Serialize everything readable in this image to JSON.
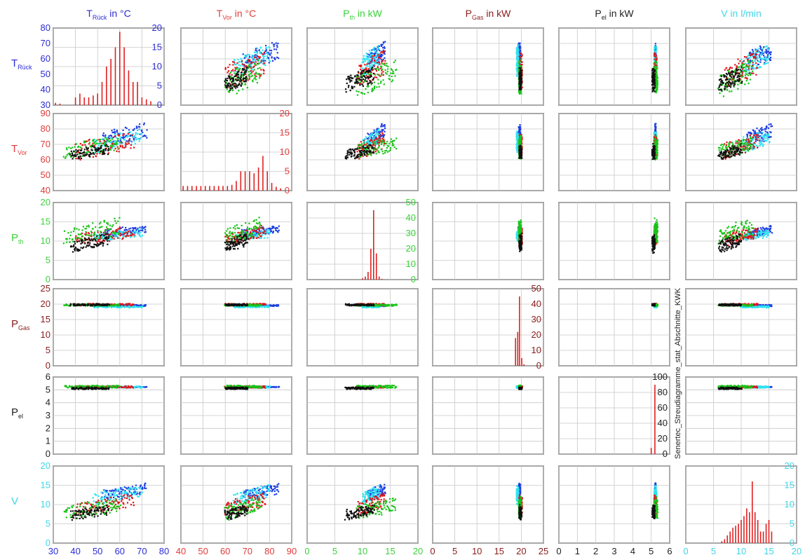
{
  "colors": {
    "T_rueck": "#2b2bd6",
    "T_vor": "#e23b3b",
    "P_th": "#3cd23c",
    "P_gas": "#8a1c1c",
    "P_el": "#222222",
    "V": "#3fd6e6",
    "series_blue": "#1d3fe0",
    "series_cyan": "#2fe3ef",
    "series_red": "#e0141a",
    "series_green": "#18c418",
    "series_black": "#111111",
    "hist": "#e02020"
  },
  "column_titles": [
    {
      "main": "T",
      "sub": "Rück",
      "tail": " in °C",
      "color": "#2b2bd6"
    },
    {
      "main": "T",
      "sub": "Vor",
      "tail": " in °C",
      "color": "#e23b3b"
    },
    {
      "main": "P",
      "sub": "th",
      "tail": " in kW",
      "color": "#3cd23c"
    },
    {
      "main": "P",
      "sub": "Gas",
      "tail": " in kW",
      "color": "#8a1c1c"
    },
    {
      "main": "P",
      "sub": "el",
      "tail": " in kW",
      "color": "#222222"
    },
    {
      "main": "V",
      "sub": "",
      "tail": " in l/min",
      "color": "#3fd6e6"
    }
  ],
  "row_labels": [
    {
      "main": "T",
      "sub": "Rück",
      "color": "#2b2bd6"
    },
    {
      "main": "T",
      "sub": "Vor",
      "color": "#e23b3b"
    },
    {
      "main": "P",
      "sub": "th",
      "color": "#3cd23c"
    },
    {
      "main": "P",
      "sub": "Gas",
      "color": "#8a1c1c"
    },
    {
      "main": "P",
      "sub": "el",
      "color": "#222222"
    },
    {
      "main": "V",
      "sub": "",
      "color": "#3fd6e6"
    }
  ],
  "side_label": "Senertec_Streudiagramme_stat_Abschnitte_KWK",
  "chart_data": {
    "type": "scatter",
    "variables": [
      "T_Rück",
      "T_Vor",
      "P_th",
      "P_Gas",
      "P_el",
      "V"
    ],
    "axis_ranges": {
      "T_Rück": [
        30,
        80
      ],
      "T_Vor": [
        40,
        90
      ],
      "P_th": [
        0,
        20
      ],
      "P_Gas": [
        0,
        25
      ],
      "P_el": [
        0,
        6
      ],
      "V": [
        0,
        20
      ]
    },
    "x_ticks": {
      "T_Rück": [
        "30",
        "40",
        "50",
        "60",
        "70",
        "80"
      ],
      "T_Vor": [
        "40",
        "50",
        "60",
        "70",
        "80",
        "90"
      ],
      "P_th": [
        "0",
        "5",
        "10",
        "15",
        "20"
      ],
      "P_Gas": [
        "0",
        "5",
        "10",
        "15",
        "20",
        "25"
      ],
      "P_el": [
        "0",
        "1",
        "2",
        "3",
        "4",
        "5",
        "6"
      ],
      "V": [
        "0",
        "5",
        "10",
        "15",
        "20"
      ]
    },
    "y_ticks": {
      "T_Rück": [
        "30",
        "40",
        "50",
        "60",
        "70",
        "80"
      ],
      "T_Vor": [
        "40",
        "50",
        "60",
        "70",
        "80",
        "90"
      ],
      "P_th": [
        "0",
        "5",
        "10",
        "15",
        "20"
      ],
      "P_Gas": [
        "0",
        "5",
        "10",
        "15",
        "20",
        "25"
      ],
      "P_el": [
        "0",
        "1",
        "2",
        "3",
        "4",
        "5",
        "6"
      ],
      "V": [
        "0",
        "5",
        "10",
        "15",
        "20"
      ]
    },
    "histogram_y_ranges": [
      {
        "variable": "T_Rück",
        "ylim": [
          0,
          20
        ],
        "ticks": [
          "0",
          "5",
          "10",
          "15",
          "20"
        ]
      },
      {
        "variable": "T_Vor",
        "ylim": [
          0,
          20
        ],
        "ticks": [
          "0",
          "5",
          "10",
          "15",
          "20"
        ]
      },
      {
        "variable": "P_th",
        "ylim": [
          0,
          50
        ],
        "ticks": [
          "0",
          "10",
          "20",
          "30",
          "40",
          "50"
        ]
      },
      {
        "variable": "P_Gas",
        "ylim": [
          0,
          50
        ],
        "ticks": [
          "0",
          "10",
          "20",
          "30",
          "40",
          "50"
        ]
      },
      {
        "variable": "P_el",
        "ylim": [
          0,
          100
        ],
        "ticks": [
          "0",
          "20",
          "40",
          "60",
          "80",
          "100"
        ]
      },
      {
        "variable": "V",
        "ylim": [
          0,
          20
        ],
        "ticks": [
          "0",
          "5",
          "10",
          "15",
          "20"
        ]
      }
    ],
    "histograms": [
      {
        "variable": "T_Rück",
        "bins": [
          [
            31,
            0.6
          ],
          [
            33,
            0.4
          ],
          [
            40,
            2
          ],
          [
            42,
            3
          ],
          [
            44,
            2
          ],
          [
            46,
            2
          ],
          [
            48,
            2.5
          ],
          [
            50,
            3
          ],
          [
            52,
            6
          ],
          [
            54,
            10
          ],
          [
            56,
            12
          ],
          [
            58,
            15
          ],
          [
            60,
            19
          ],
          [
            62,
            15
          ],
          [
            64,
            9
          ],
          [
            66,
            6
          ],
          [
            68,
            6
          ],
          [
            70,
            2
          ],
          [
            72,
            1.5
          ],
          [
            74,
            1
          ]
        ]
      },
      {
        "variable": "T_Vor",
        "bins": [
          [
            41,
            1.2
          ],
          [
            43,
            1.2
          ],
          [
            45,
            1.2
          ],
          [
            47,
            1.2
          ],
          [
            49,
            1.2
          ],
          [
            51,
            1.2
          ],
          [
            53,
            1.2
          ],
          [
            55,
            1.2
          ],
          [
            57,
            1.2
          ],
          [
            59,
            1.2
          ],
          [
            61,
            1.2
          ],
          [
            63,
            1.5
          ],
          [
            65,
            2.5
          ],
          [
            67,
            5
          ],
          [
            69,
            5
          ],
          [
            71,
            5
          ],
          [
            73,
            4.5
          ],
          [
            75,
            6
          ],
          [
            77,
            9
          ],
          [
            79,
            5
          ],
          [
            81,
            2
          ],
          [
            83,
            1
          ],
          [
            85,
            0.6
          ]
        ]
      },
      {
        "variable": "P_th",
        "bins": [
          [
            10,
            1
          ],
          [
            10.5,
            2
          ],
          [
            11,
            5
          ],
          [
            11.5,
            20
          ],
          [
            12,
            45
          ],
          [
            12.5,
            17
          ],
          [
            13,
            2
          ],
          [
            13.5,
            0.5
          ]
        ]
      },
      {
        "variable": "P_Gas",
        "bins": [
          [
            18.7,
            18
          ],
          [
            19.2,
            22
          ],
          [
            19.6,
            45
          ],
          [
            20.1,
            5
          ],
          [
            20.6,
            1
          ]
        ]
      },
      {
        "variable": "P_el",
        "bins": [
          [
            5.0,
            8
          ],
          [
            5.2,
            90
          ]
        ]
      },
      {
        "variable": "V",
        "bins": [
          [
            6.5,
            0.5
          ],
          [
            7,
            1
          ],
          [
            7.5,
            2
          ],
          [
            8,
            3
          ],
          [
            8.5,
            4
          ],
          [
            9,
            4.5
          ],
          [
            9.5,
            5
          ],
          [
            10,
            6
          ],
          [
            10.5,
            7
          ],
          [
            11,
            9
          ],
          [
            11.5,
            8
          ],
          [
            12,
            16
          ],
          [
            12.5,
            8
          ],
          [
            13,
            6
          ],
          [
            13.5,
            3
          ],
          [
            14,
            3
          ],
          [
            14.5,
            5
          ],
          [
            15,
            6
          ],
          [
            15.5,
            3
          ]
        ]
      }
    ],
    "series": [
      {
        "name": "",
        "color": "#1d3fe0",
        "values": {
          "T_Rück": [
            52,
            72
          ],
          "T_Vor": [
            68,
            84
          ],
          "P_th": [
            11,
            14
          ],
          "P_Gas": [
            19.3,
            19.8
          ],
          "P_el": [
            5.2,
            5.25
          ],
          "V": [
            11,
            15.5
          ]
        }
      },
      {
        "name": "",
        "color": "#2fe3ef",
        "values": {
          "T_Rück": [
            48,
            70
          ],
          "T_Vor": [
            64,
            80
          ],
          "P_th": [
            10,
            13
          ],
          "P_Gas": [
            18.9,
            19.4
          ],
          "P_el": [
            5.15,
            5.3
          ],
          "V": [
            10,
            15
          ]
        }
      },
      {
        "name": "",
        "color": "#e0141a",
        "values": {
          "T_Rück": [
            40,
            66
          ],
          "T_Vor": [
            60,
            78
          ],
          "P_th": [
            9,
            14
          ],
          "P_Gas": [
            19.5,
            20.2
          ],
          "P_el": [
            5.15,
            5.3
          ],
          "V": [
            7,
            13
          ]
        }
      },
      {
        "name": "",
        "color": "#18c418",
        "values": {
          "T_Rück": [
            35,
            60
          ],
          "T_Vor": [
            60,
            76
          ],
          "P_th": [
            9,
            16
          ],
          "P_Gas": [
            19.4,
            20.0
          ],
          "P_el": [
            5.15,
            5.35
          ],
          "V": [
            6,
            12
          ]
        }
      },
      {
        "name": "",
        "color": "#111111",
        "values": {
          "T_Rück": [
            38,
            55
          ],
          "T_Vor": [
            60,
            70
          ],
          "P_th": [
            7,
            12
          ],
          "P_Gas": [
            19.5,
            20.1
          ],
          "P_el": [
            5.05,
            5.2
          ],
          "V": [
            6,
            10
          ]
        }
      }
    ],
    "grid": true,
    "layout": "6x6 scatter-plot matrix, histograms on diagonal"
  }
}
